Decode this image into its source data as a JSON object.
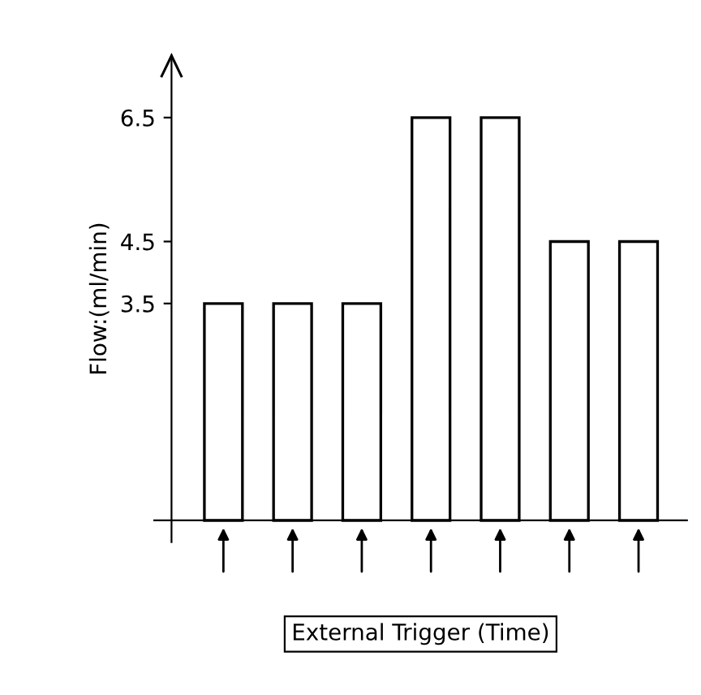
{
  "chart_data": {
    "type": "bar",
    "ylabel": "Flow:(ml/min)",
    "xlabel": "External Trigger (Time)",
    "categories": [
      null,
      null,
      null,
      null,
      null,
      null,
      null
    ],
    "values": [
      3.5,
      3.5,
      3.5,
      6.5,
      6.5,
      4.5,
      4.5
    ],
    "color": "#ffffff",
    "ylim": [
      -0.35,
      7.5
    ],
    "yticks": [
      3.5,
      4.5,
      6.5
    ],
    "grid": false,
    "legend": false
  }
}
